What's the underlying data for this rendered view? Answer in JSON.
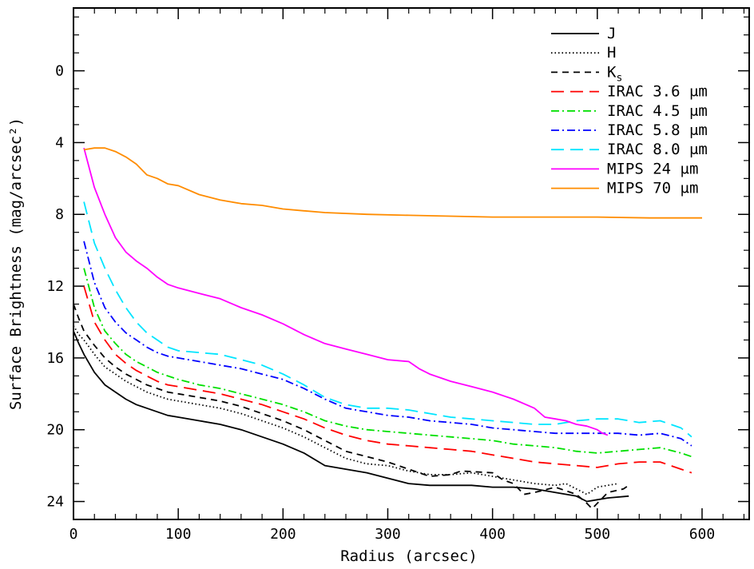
{
  "chart_data": {
    "type": "line",
    "xlabel": "Radius (arcsec)",
    "ylabel": "Surface Brightness (mag/arcsec²)",
    "xlim": [
      0,
      645
    ],
    "ylim": [
      25,
      -3.5
    ],
    "y_inverted": true,
    "grid": false,
    "legend_position": "top-right",
    "x_ticks": [
      0,
      100,
      200,
      300,
      400,
      500,
      600
    ],
    "y_ticks": [
      0,
      4,
      8,
      12,
      16,
      20,
      24
    ],
    "series": [
      {
        "name": "J",
        "color": "#000000",
        "dash": "solid",
        "points": [
          [
            0,
            14.5
          ],
          [
            5,
            15.2
          ],
          [
            10,
            15.8
          ],
          [
            20,
            16.8
          ],
          [
            30,
            17.5
          ],
          [
            40,
            17.9
          ],
          [
            50,
            18.3
          ],
          [
            60,
            18.6
          ],
          [
            70,
            18.8
          ],
          [
            80,
            19.0
          ],
          [
            90,
            19.2
          ],
          [
            100,
            19.3
          ],
          [
            120,
            19.5
          ],
          [
            140,
            19.7
          ],
          [
            160,
            20.0
          ],
          [
            180,
            20.4
          ],
          [
            200,
            20.8
          ],
          [
            220,
            21.3
          ],
          [
            240,
            22.0
          ],
          [
            260,
            22.2
          ],
          [
            280,
            22.4
          ],
          [
            300,
            22.7
          ],
          [
            320,
            23.0
          ],
          [
            340,
            23.1
          ],
          [
            360,
            23.1
          ],
          [
            380,
            23.1
          ],
          [
            400,
            23.2
          ],
          [
            420,
            23.2
          ],
          [
            440,
            23.3
          ],
          [
            460,
            23.5
          ],
          [
            480,
            23.7
          ],
          [
            490,
            24.0
          ],
          [
            500,
            23.9
          ],
          [
            510,
            23.8
          ],
          [
            530,
            23.7
          ]
        ]
      },
      {
        "name": "H",
        "color": "#000000",
        "dash": "dotted",
        "points": [
          [
            0,
            14.2
          ],
          [
            5,
            14.7
          ],
          [
            10,
            15.0
          ],
          [
            20,
            15.8
          ],
          [
            30,
            16.5
          ],
          [
            40,
            16.9
          ],
          [
            50,
            17.3
          ],
          [
            60,
            17.6
          ],
          [
            70,
            17.9
          ],
          [
            80,
            18.1
          ],
          [
            90,
            18.3
          ],
          [
            100,
            18.4
          ],
          [
            120,
            18.6
          ],
          [
            140,
            18.8
          ],
          [
            160,
            19.1
          ],
          [
            180,
            19.5
          ],
          [
            200,
            19.9
          ],
          [
            220,
            20.4
          ],
          [
            240,
            21.0
          ],
          [
            260,
            21.6
          ],
          [
            280,
            21.9
          ],
          [
            300,
            22.0
          ],
          [
            320,
            22.3
          ],
          [
            340,
            22.5
          ],
          [
            360,
            22.5
          ],
          [
            380,
            22.4
          ],
          [
            400,
            22.6
          ],
          [
            420,
            22.8
          ],
          [
            440,
            23.0
          ],
          [
            460,
            23.1
          ],
          [
            470,
            23.0
          ],
          [
            480,
            23.3
          ],
          [
            490,
            23.6
          ],
          [
            500,
            23.2
          ],
          [
            510,
            23.1
          ],
          [
            520,
            23.0
          ]
        ]
      },
      {
        "name": "K_s",
        "color": "#000000",
        "dash": "dashed",
        "points": [
          [
            0,
            13.0
          ],
          [
            5,
            13.8
          ],
          [
            10,
            14.5
          ],
          [
            20,
            15.3
          ],
          [
            30,
            16.0
          ],
          [
            40,
            16.5
          ],
          [
            50,
            16.9
          ],
          [
            60,
            17.2
          ],
          [
            70,
            17.5
          ],
          [
            80,
            17.7
          ],
          [
            90,
            17.9
          ],
          [
            100,
            18.0
          ],
          [
            120,
            18.2
          ],
          [
            140,
            18.4
          ],
          [
            160,
            18.7
          ],
          [
            180,
            19.1
          ],
          [
            200,
            19.5
          ],
          [
            220,
            20.0
          ],
          [
            240,
            20.6
          ],
          [
            260,
            21.2
          ],
          [
            280,
            21.5
          ],
          [
            300,
            21.8
          ],
          [
            320,
            22.2
          ],
          [
            340,
            22.6
          ],
          [
            360,
            22.5
          ],
          [
            370,
            22.3
          ],
          [
            400,
            22.4
          ],
          [
            410,
            22.8
          ],
          [
            420,
            23.0
          ],
          [
            430,
            23.6
          ],
          [
            440,
            23.5
          ],
          [
            460,
            23.2
          ],
          [
            480,
            23.6
          ],
          [
            490,
            24.1
          ],
          [
            495,
            24.4
          ],
          [
            510,
            23.5
          ],
          [
            525,
            23.3
          ],
          [
            530,
            23.1
          ]
        ]
      },
      {
        "name": "IRAC 3.6 μm",
        "color": "#ff0000",
        "dash": "longdash",
        "points": [
          [
            10,
            12.0
          ],
          [
            20,
            14.0
          ],
          [
            30,
            15.0
          ],
          [
            40,
            15.8
          ],
          [
            50,
            16.3
          ],
          [
            60,
            16.7
          ],
          [
            70,
            17.0
          ],
          [
            80,
            17.3
          ],
          [
            90,
            17.5
          ],
          [
            100,
            17.6
          ],
          [
            120,
            17.8
          ],
          [
            140,
            18.0
          ],
          [
            160,
            18.3
          ],
          [
            180,
            18.6
          ],
          [
            200,
            19.0
          ],
          [
            220,
            19.4
          ],
          [
            240,
            19.9
          ],
          [
            260,
            20.3
          ],
          [
            280,
            20.6
          ],
          [
            300,
            20.8
          ],
          [
            320,
            20.9
          ],
          [
            340,
            21.0
          ],
          [
            360,
            21.1
          ],
          [
            380,
            21.2
          ],
          [
            400,
            21.4
          ],
          [
            420,
            21.6
          ],
          [
            440,
            21.8
          ],
          [
            460,
            21.9
          ],
          [
            480,
            22.0
          ],
          [
            500,
            22.1
          ],
          [
            520,
            21.9
          ],
          [
            540,
            21.8
          ],
          [
            560,
            21.8
          ],
          [
            580,
            22.2
          ],
          [
            590,
            22.4
          ]
        ]
      },
      {
        "name": "IRAC 4.5 μm",
        "color": "#00e000",
        "dash": "dashdot",
        "points": [
          [
            10,
            11.0
          ],
          [
            20,
            13.2
          ],
          [
            30,
            14.5
          ],
          [
            40,
            15.2
          ],
          [
            50,
            15.8
          ],
          [
            60,
            16.2
          ],
          [
            70,
            16.5
          ],
          [
            80,
            16.8
          ],
          [
            90,
            17.0
          ],
          [
            100,
            17.2
          ],
          [
            120,
            17.5
          ],
          [
            140,
            17.7
          ],
          [
            160,
            18.0
          ],
          [
            180,
            18.3
          ],
          [
            200,
            18.6
          ],
          [
            220,
            19.0
          ],
          [
            240,
            19.5
          ],
          [
            260,
            19.8
          ],
          [
            280,
            20.0
          ],
          [
            300,
            20.1
          ],
          [
            320,
            20.2
          ],
          [
            340,
            20.3
          ],
          [
            360,
            20.4
          ],
          [
            380,
            20.5
          ],
          [
            400,
            20.6
          ],
          [
            420,
            20.8
          ],
          [
            440,
            20.9
          ],
          [
            460,
            21.0
          ],
          [
            480,
            21.2
          ],
          [
            500,
            21.3
          ],
          [
            520,
            21.2
          ],
          [
            540,
            21.1
          ],
          [
            560,
            21.0
          ],
          [
            580,
            21.3
          ],
          [
            590,
            21.5
          ]
        ]
      },
      {
        "name": "IRAC 5.8 μm",
        "color": "#0000ff",
        "dash": "dashdot",
        "points": [
          [
            10,
            9.5
          ],
          [
            20,
            11.8
          ],
          [
            30,
            13.2
          ],
          [
            40,
            14.0
          ],
          [
            50,
            14.6
          ],
          [
            60,
            15.0
          ],
          [
            70,
            15.4
          ],
          [
            80,
            15.7
          ],
          [
            90,
            15.9
          ],
          [
            100,
            16.0
          ],
          [
            120,
            16.2
          ],
          [
            140,
            16.4
          ],
          [
            160,
            16.6
          ],
          [
            180,
            16.9
          ],
          [
            200,
            17.2
          ],
          [
            220,
            17.7
          ],
          [
            240,
            18.3
          ],
          [
            260,
            18.8
          ],
          [
            280,
            19.0
          ],
          [
            300,
            19.2
          ],
          [
            320,
            19.3
          ],
          [
            340,
            19.5
          ],
          [
            360,
            19.6
          ],
          [
            380,
            19.7
          ],
          [
            400,
            19.9
          ],
          [
            420,
            20.0
          ],
          [
            440,
            20.1
          ],
          [
            460,
            20.2
          ],
          [
            480,
            20.2
          ],
          [
            500,
            20.2
          ],
          [
            520,
            20.2
          ],
          [
            540,
            20.3
          ],
          [
            560,
            20.2
          ],
          [
            580,
            20.5
          ],
          [
            590,
            20.9
          ]
        ]
      },
      {
        "name": "IRAC 8.0 μm",
        "color": "#00e5ff",
        "dash": "longdash",
        "points": [
          [
            10,
            7.3
          ],
          [
            20,
            9.6
          ],
          [
            30,
            11.0
          ],
          [
            40,
            12.2
          ],
          [
            50,
            13.2
          ],
          [
            60,
            14.0
          ],
          [
            70,
            14.6
          ],
          [
            80,
            15.0
          ],
          [
            90,
            15.4
          ],
          [
            100,
            15.6
          ],
          [
            120,
            15.7
          ],
          [
            140,
            15.8
          ],
          [
            160,
            16.1
          ],
          [
            180,
            16.4
          ],
          [
            200,
            16.9
          ],
          [
            220,
            17.5
          ],
          [
            240,
            18.2
          ],
          [
            260,
            18.6
          ],
          [
            280,
            18.8
          ],
          [
            300,
            18.8
          ],
          [
            320,
            18.9
          ],
          [
            340,
            19.1
          ],
          [
            360,
            19.3
          ],
          [
            380,
            19.4
          ],
          [
            400,
            19.5
          ],
          [
            420,
            19.6
          ],
          [
            440,
            19.7
          ],
          [
            460,
            19.7
          ],
          [
            480,
            19.5
          ],
          [
            500,
            19.4
          ],
          [
            520,
            19.4
          ],
          [
            540,
            19.6
          ],
          [
            560,
            19.5
          ],
          [
            580,
            19.9
          ],
          [
            590,
            20.4
          ]
        ]
      },
      {
        "name": "MIPS 24 μm",
        "color": "#ff00ff",
        "dash": "solid",
        "points": [
          [
            10,
            4.3
          ],
          [
            20,
            6.5
          ],
          [
            30,
            8.0
          ],
          [
            40,
            9.3
          ],
          [
            50,
            10.1
          ],
          [
            60,
            10.6
          ],
          [
            70,
            11.0
          ],
          [
            80,
            11.5
          ],
          [
            90,
            11.9
          ],
          [
            100,
            12.1
          ],
          [
            120,
            12.4
          ],
          [
            140,
            12.7
          ],
          [
            160,
            13.2
          ],
          [
            180,
            13.6
          ],
          [
            200,
            14.1
          ],
          [
            220,
            14.7
          ],
          [
            240,
            15.2
          ],
          [
            260,
            15.5
          ],
          [
            280,
            15.8
          ],
          [
            300,
            16.1
          ],
          [
            320,
            16.2
          ],
          [
            330,
            16.6
          ],
          [
            340,
            16.9
          ],
          [
            360,
            17.3
          ],
          [
            380,
            17.6
          ],
          [
            400,
            17.9
          ],
          [
            420,
            18.3
          ],
          [
            440,
            18.8
          ],
          [
            450,
            19.3
          ],
          [
            460,
            19.4
          ],
          [
            470,
            19.5
          ],
          [
            480,
            19.7
          ],
          [
            490,
            19.8
          ],
          [
            500,
            20.0
          ],
          [
            505,
            20.2
          ],
          [
            510,
            20.3
          ]
        ]
      },
      {
        "name": "MIPS 70 μm",
        "color": "#ff8c00",
        "dash": "solid",
        "points": [
          [
            10,
            4.4
          ],
          [
            20,
            4.3
          ],
          [
            30,
            4.3
          ],
          [
            40,
            4.5
          ],
          [
            50,
            4.8
          ],
          [
            60,
            5.2
          ],
          [
            70,
            5.8
          ],
          [
            80,
            6.0
          ],
          [
            90,
            6.3
          ],
          [
            100,
            6.4
          ],
          [
            120,
            6.9
          ],
          [
            140,
            7.2
          ],
          [
            160,
            7.4
          ],
          [
            180,
            7.5
          ],
          [
            200,
            7.7
          ],
          [
            220,
            7.8
          ],
          [
            240,
            7.9
          ],
          [
            280,
            8.0
          ],
          [
            320,
            8.05
          ],
          [
            360,
            8.1
          ],
          [
            400,
            8.15
          ],
          [
            440,
            8.15
          ],
          [
            500,
            8.15
          ],
          [
            550,
            8.2
          ],
          [
            600,
            8.2
          ]
        ]
      }
    ]
  }
}
